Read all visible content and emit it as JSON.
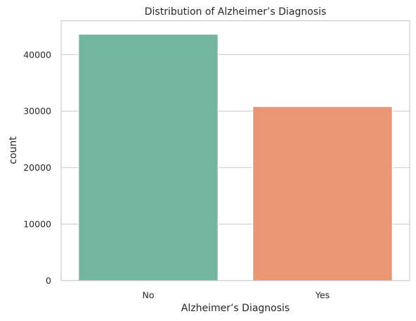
{
  "chart_data": {
    "type": "bar",
    "title": "Distribution of Alzheimer’s Diagnosis",
    "xlabel": "Alzheimer’s Diagnosis",
    "ylabel": "count",
    "categories": [
      "No",
      "Yes"
    ],
    "values": [
      43600,
      30800
    ],
    "ylim": [
      0,
      46000
    ],
    "yticks": [
      0,
      10000,
      20000,
      30000,
      40000
    ],
    "ytick_labels": [
      "0",
      "10000",
      "20000",
      "30000",
      "40000"
    ],
    "grid": true,
    "legend": "none",
    "colors": [
      "#74b59f",
      "#e99674"
    ]
  }
}
